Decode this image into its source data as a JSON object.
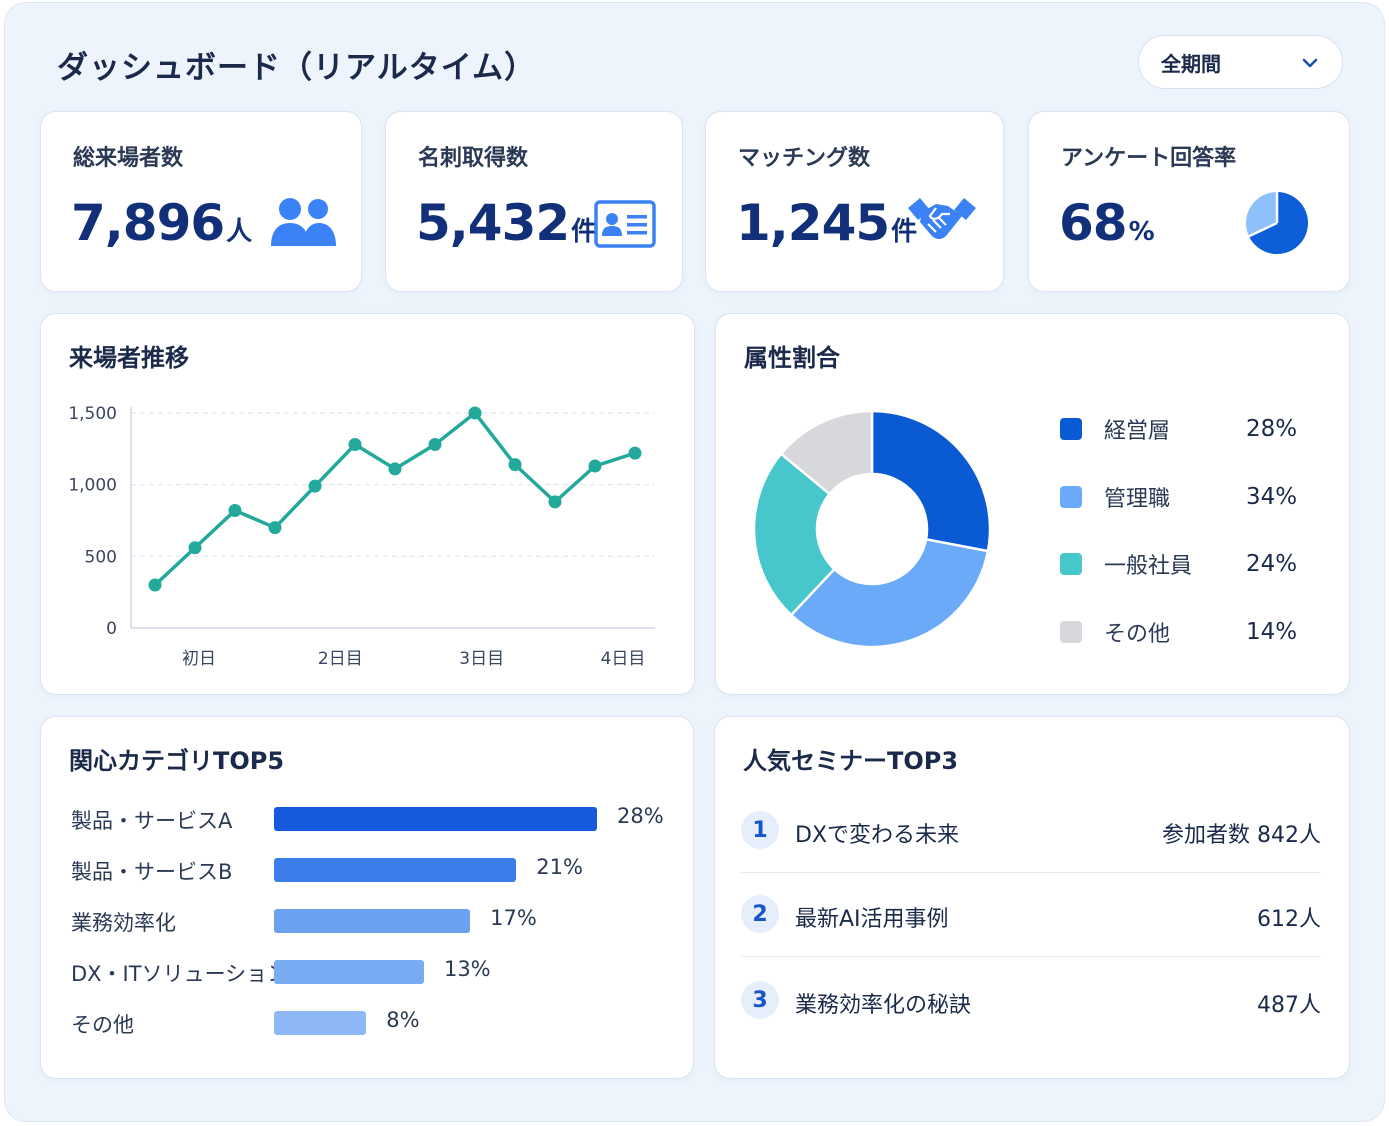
{
  "header": {
    "title": "ダッシュボード（リアルタイム）",
    "period_selector": "全期間"
  },
  "kpis": [
    {
      "label": "総来場者数",
      "value": "7,896",
      "unit": "人",
      "icon": "people-icon"
    },
    {
      "label": "名刺取得数",
      "value": "5,432",
      "unit": "件",
      "icon": "business-card-icon"
    },
    {
      "label": "マッチング数",
      "value": "1,245",
      "unit": "件",
      "icon": "handshake-icon"
    },
    {
      "label": "アンケート回答率",
      "value": "68",
      "unit": "%",
      "icon": "pie-chart-icon",
      "fraction": 0.68
    }
  ],
  "visitor_trend": {
    "title": "来場者推移",
    "chart_data": {
      "type": "line",
      "x_tick_labels": [
        "初日",
        "2日目",
        "3日目",
        "4日目"
      ],
      "y_ticks": [
        0,
        500,
        1000,
        1500
      ],
      "ylim": [
        0,
        1500
      ],
      "values": [
        300,
        560,
        820,
        700,
        990,
        1280,
        1110,
        1280,
        1500,
        1140,
        880,
        1130,
        1220
      ],
      "color": "#23a99c",
      "grid": true
    }
  },
  "attribute_ratio": {
    "title": "属性割合",
    "chart_data": {
      "type": "pie",
      "labels": [
        "経営層",
        "管理職",
        "一般社員",
        "その他"
      ],
      "values": [
        28,
        34,
        24,
        14
      ],
      "value_labels": [
        "28%",
        "34%",
        "24%",
        "14%"
      ],
      "colors": [
        "#0a5bd3",
        "#6aaaf8",
        "#47c7cb",
        "#d6d8dc"
      ]
    }
  },
  "interest_top5": {
    "title": "関心カテゴリTOP5",
    "chart_data": {
      "type": "bar",
      "orientation": "horizontal",
      "categories": [
        "製品・サービスA",
        "製品・サービスB",
        "業務効率化",
        "DX・ITソリューション",
        "その他"
      ],
      "values": [
        28,
        21,
        17,
        13,
        8
      ],
      "value_labels": [
        "28%",
        "21%",
        "17%",
        "13%",
        "8%"
      ],
      "colors": [
        "#1559dd",
        "#3b7dea",
        "#6aa2f1",
        "#79abf3",
        "#8db8f5"
      ]
    }
  },
  "seminars_top3": {
    "title": "人気セミナーTOP3",
    "items": [
      {
        "rank": "1",
        "title": "DXで変わる未来",
        "attendees": "参加者数 842人"
      },
      {
        "rank": "2",
        "title": "最新AI活用事例",
        "attendees": "612人"
      },
      {
        "rank": "3",
        "title": "業務効率化の秘訣",
        "attendees": "487人"
      }
    ]
  },
  "colors": {
    "background": "#eef4fc",
    "card": "#ffffff",
    "primary": "#12307a",
    "accent": "#3b82f6",
    "line": "#23a99c"
  }
}
